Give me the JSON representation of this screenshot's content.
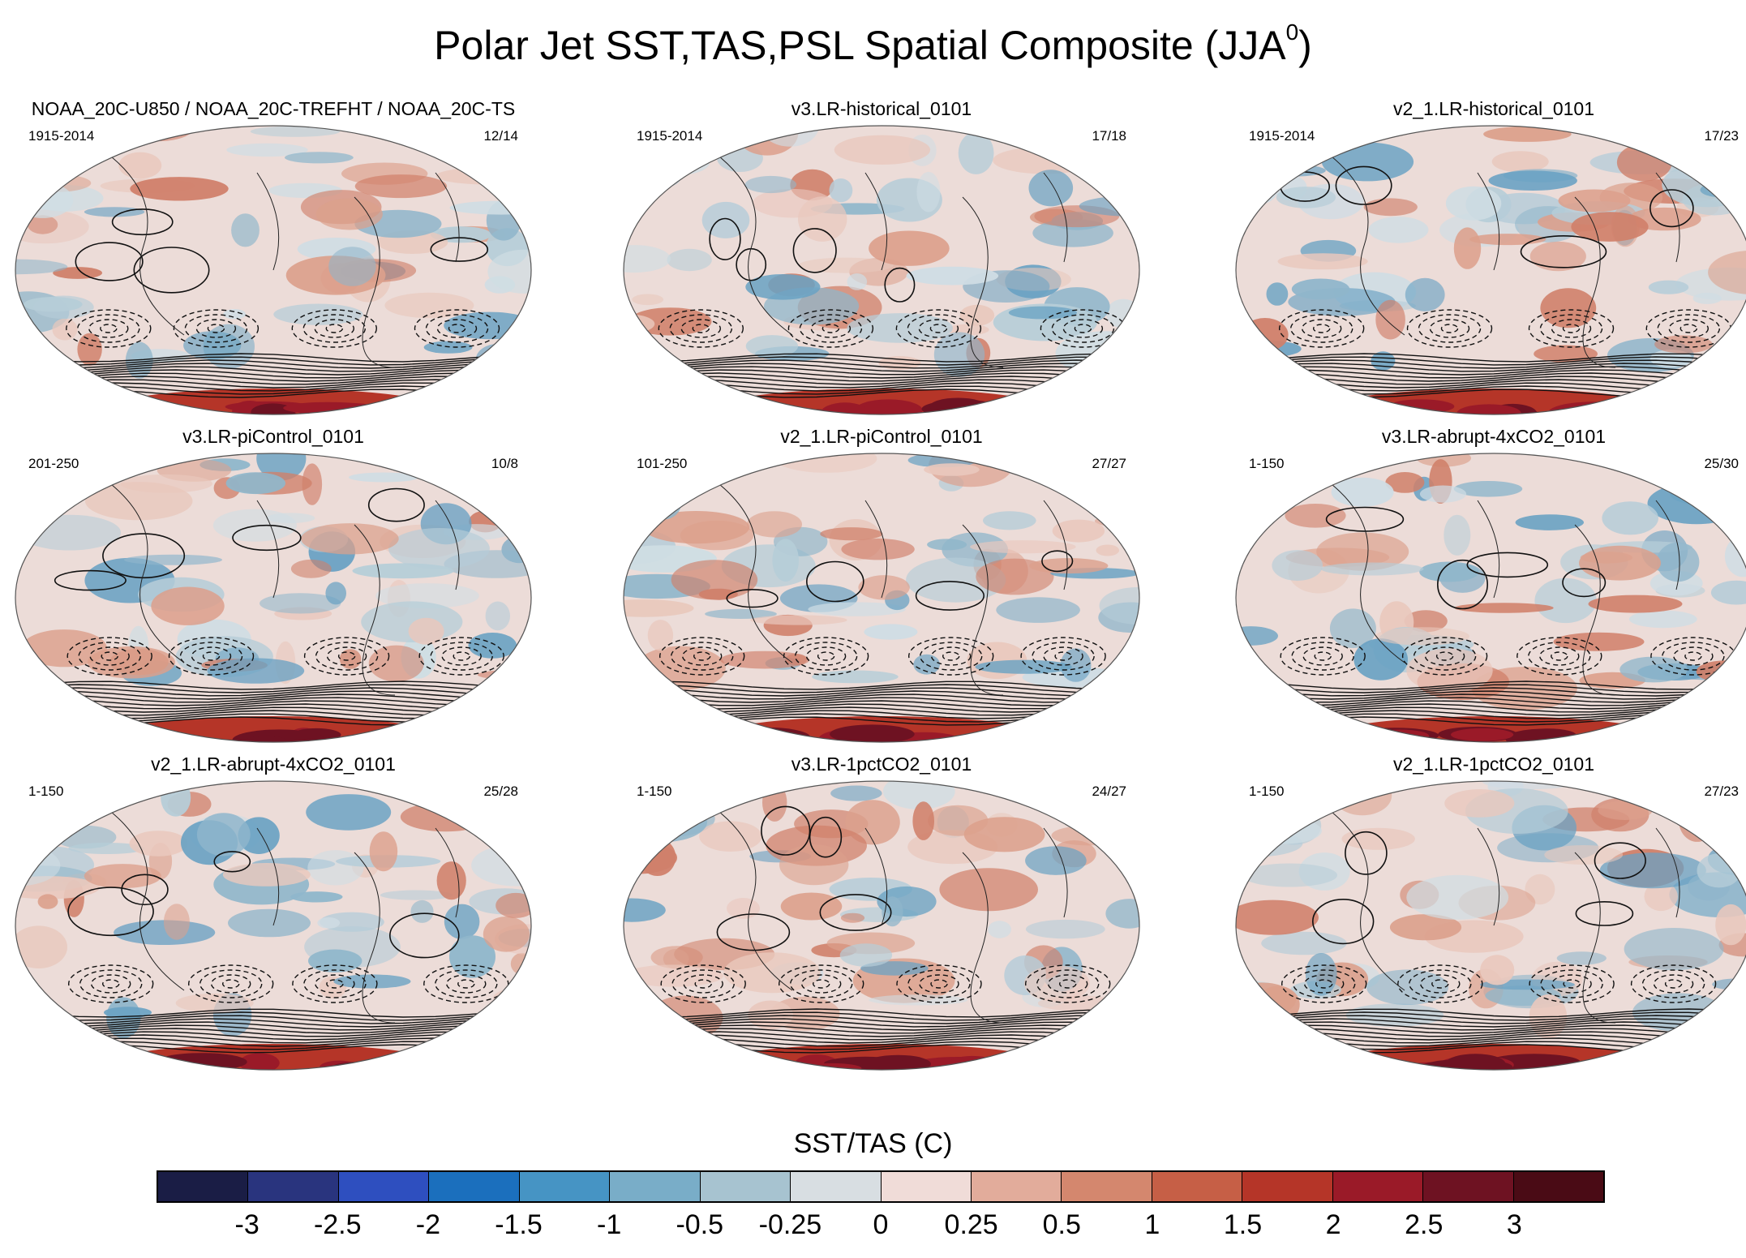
{
  "figure": {
    "title_main": "Polar Jet SST,TAS,PSL Spatial Composite (JJA",
    "title_sup": "0",
    "title_end": ")"
  },
  "panels": [
    {
      "title": "NOAA_20C-U850 / NOAA_20C-TREFHT / NOAA_20C-TS",
      "left": "1915-2014",
      "right": "12/14"
    },
    {
      "title": "v3.LR-historical_0101",
      "left": "1915-2014",
      "right": "17/18"
    },
    {
      "title": "v2_1.LR-historical_0101",
      "left": "1915-2014",
      "right": "17/23"
    },
    {
      "title": "v3.LR-piControl_0101",
      "left": "201-250",
      "right": "10/8"
    },
    {
      "title": "v2_1.LR-piControl_0101",
      "left": "101-250",
      "right": "27/27"
    },
    {
      "title": "v3.LR-abrupt-4xCO2_0101",
      "left": "1-150",
      "right": "25/30"
    },
    {
      "title": "v2_1.LR-abrupt-4xCO2_0101",
      "left": "1-150",
      "right": "25/28"
    },
    {
      "title": "v3.LR-1pctCO2_0101",
      "left": "1-150",
      "right": "24/27"
    },
    {
      "title": "v2_1.LR-1pctCO2_0101",
      "left": "1-150",
      "right": "27/23"
    }
  ],
  "colorbar": {
    "title": "SST/TAS (C)",
    "labels": [
      "-3",
      "-2.5",
      "-2",
      "-1.5",
      "-1",
      "-0.5",
      "-0.25",
      "0",
      "0.25",
      "0.5",
      "1",
      "1.5",
      "2",
      "2.5",
      "3"
    ],
    "colors": [
      "#1a1d45",
      "#29347e",
      "#2e4fbf",
      "#1b6fbd",
      "#4694c4",
      "#79adc8",
      "#a7c3d0",
      "#d8dee2",
      "#f0dcd8",
      "#e2ac9b",
      "#d4876e",
      "#c65f46",
      "#b53528",
      "#9a1a28",
      "#6e1222",
      "#4a0b15"
    ]
  }
}
